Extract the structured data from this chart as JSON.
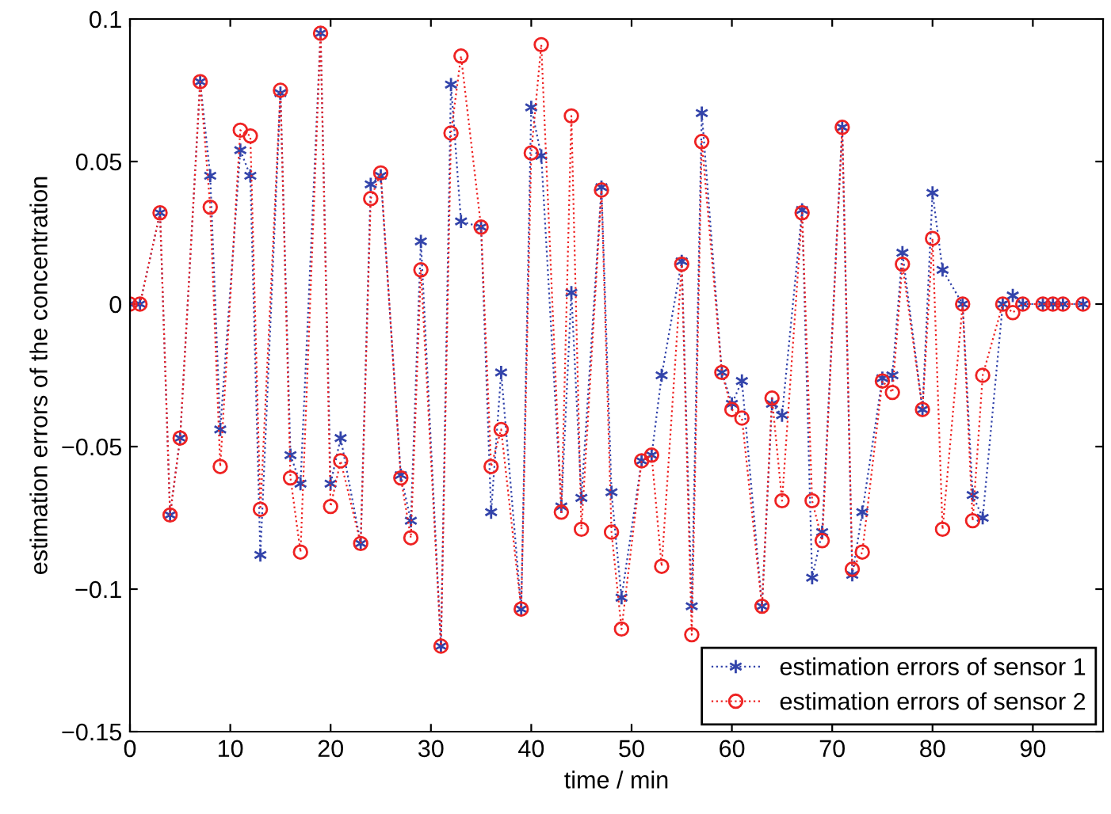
{
  "chart_data": {
    "type": "line",
    "xlabel": "time / min",
    "ylabel": "estimation errors of the concentration",
    "x": [
      0,
      1,
      3,
      4,
      5,
      7,
      8,
      9,
      11,
      12,
      13,
      15,
      16,
      17,
      19,
      20,
      21,
      23,
      24,
      25,
      27,
      28,
      29,
      31,
      32,
      33,
      35,
      36,
      37,
      39,
      40,
      41,
      43,
      44,
      45,
      47,
      48,
      49,
      51,
      52,
      53,
      55,
      56,
      57,
      59,
      60,
      61,
      63,
      64,
      65,
      67,
      68,
      69,
      71,
      72,
      73,
      75,
      76,
      77,
      79,
      80,
      81,
      83,
      84,
      85,
      87,
      88,
      89,
      91,
      92,
      93,
      95
    ],
    "series": [
      {
        "name": "estimation errors of sensor 1",
        "color": "#3344aa",
        "marker": "cross",
        "values": [
          0,
          0,
          0.032,
          -0.074,
          -0.047,
          0.078,
          0.045,
          -0.044,
          0.054,
          0.045,
          -0.088,
          0.074,
          -0.053,
          -0.063,
          0.095,
          -0.063,
          -0.047,
          -0.084,
          0.042,
          0.045,
          -0.06,
          -0.076,
          0.022,
          -0.12,
          0.077,
          0.029,
          0.027,
          -0.073,
          -0.024,
          -0.107,
          0.069,
          0.052,
          -0.071,
          0.004,
          -0.068,
          0.041,
          -0.066,
          -0.103,
          -0.055,
          -0.053,
          -0.025,
          0.015,
          -0.106,
          0.067,
          -0.024,
          -0.035,
          -0.027,
          -0.106,
          -0.035,
          -0.039,
          0.033,
          -0.096,
          -0.08,
          0.062,
          -0.095,
          -0.073,
          -0.026,
          -0.025,
          0.018,
          -0.037,
          0.039,
          0.012,
          0,
          -0.067,
          -0.075,
          0,
          0.003,
          0,
          0,
          0,
          0,
          0
        ]
      },
      {
        "name": "estimation errors of sensor 2",
        "color": "#ee2222",
        "marker": "circle",
        "values": [
          0,
          0,
          0.032,
          -0.074,
          -0.047,
          0.078,
          0.034,
          -0.057,
          0.061,
          0.059,
          -0.072,
          0.075,
          -0.061,
          -0.087,
          0.095,
          -0.071,
          -0.055,
          -0.084,
          0.037,
          0.046,
          -0.061,
          -0.082,
          0.012,
          -0.12,
          0.06,
          0.087,
          0.027,
          -0.057,
          -0.044,
          -0.107,
          0.053,
          0.091,
          -0.073,
          0.066,
          -0.079,
          0.04,
          -0.08,
          -0.114,
          -0.055,
          -0.053,
          -0.092,
          0.014,
          -0.116,
          0.057,
          -0.024,
          -0.037,
          -0.04,
          -0.106,
          -0.033,
          -0.069,
          0.032,
          -0.069,
          -0.083,
          0.062,
          -0.093,
          -0.087,
          -0.027,
          -0.031,
          0.014,
          -0.037,
          0.023,
          -0.079,
          0,
          -0.076,
          -0.025,
          0,
          -0.003,
          0,
          0,
          0,
          0,
          0
        ]
      }
    ],
    "line_style": "dotted",
    "xlim": [
      0,
      97
    ],
    "xticks": [
      0,
      10,
      20,
      30,
      40,
      50,
      60,
      70,
      80,
      90
    ],
    "ylim": [
      -0.15,
      0.1
    ],
    "yticks": [
      {
        "value": -0.15,
        "label": "−0.15"
      },
      {
        "value": -0.1,
        "label": "−0.1"
      },
      {
        "value": -0.05,
        "label": "−0.05"
      },
      0,
      0.05,
      0.1
    ],
    "grid": false,
    "legend": "bottom right"
  }
}
